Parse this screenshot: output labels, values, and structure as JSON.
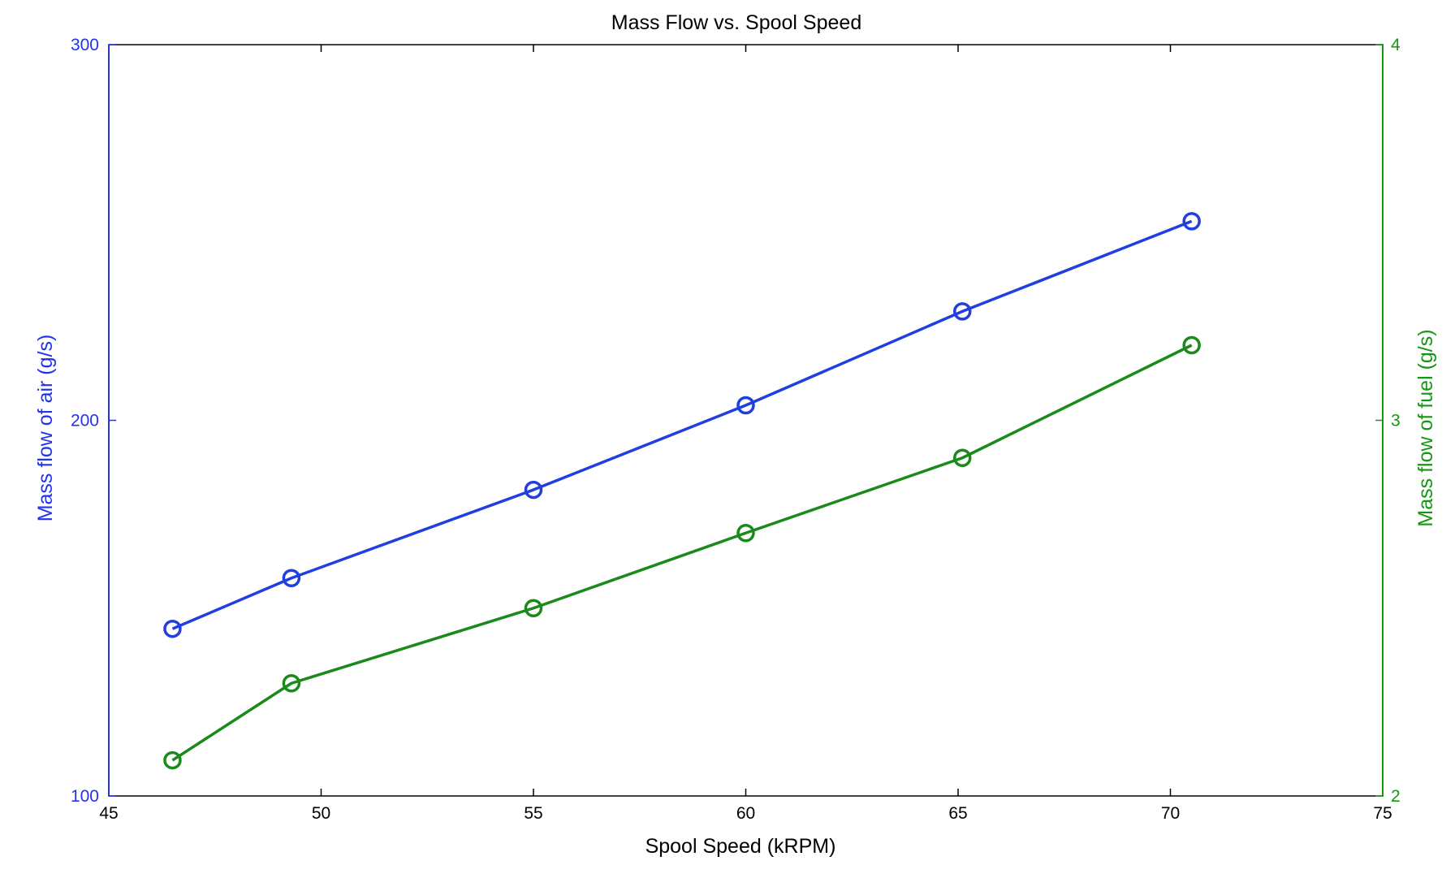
{
  "chart_data": {
    "type": "line",
    "title": "Mass Flow vs. Spool Speed",
    "xlabel": "Spool Speed (kRPM)",
    "ylabel": "Mass flow of air (g/s)",
    "ylabel_right": "Mass flow of fuel (g/s)",
    "xlim": [
      45,
      75
    ],
    "ylim": [
      100,
      300
    ],
    "ylim_right": [
      2,
      4
    ],
    "x_ticks": [
      45,
      50,
      55,
      60,
      65,
      70,
      75
    ],
    "y_ticks": [
      100,
      200,
      300
    ],
    "y_ticks_right": [
      2,
      3,
      4
    ],
    "grid": false,
    "series": [
      {
        "axis": "left",
        "color": "#1f3fe0",
        "marker": "circle",
        "x": [
          46.5,
          49.3,
          55.0,
          60.0,
          65.1,
          70.5
        ],
        "y": [
          144.5,
          158.0,
          181.5,
          204.0,
          229.0,
          253.0
        ]
      },
      {
        "axis": "right",
        "color": "#1a8a1a",
        "marker": "circle",
        "x": [
          46.5,
          49.3,
          55.0,
          60.0,
          65.1,
          70.5
        ],
        "y": [
          2.095,
          2.3,
          2.5,
          2.7,
          2.9,
          3.2
        ]
      }
    ]
  },
  "colors": {
    "left_axis": "#2233ee",
    "right_axis": "#119911",
    "frame": "#000000"
  }
}
